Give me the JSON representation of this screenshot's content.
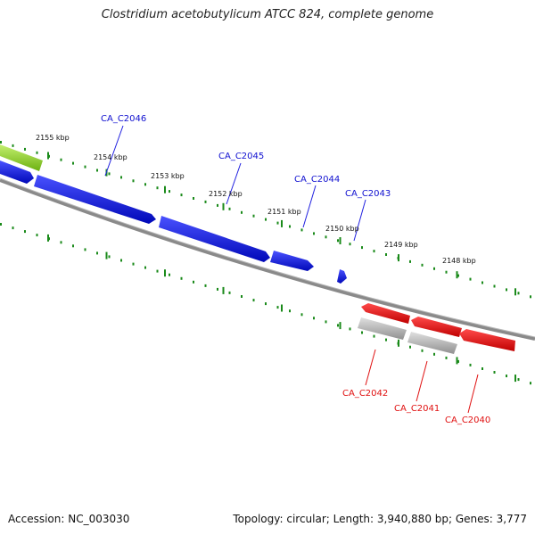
{
  "title": "Clostridium acetobutylicum ATCC 824, complete genome",
  "footer": {
    "accession": "Accession: NC_003030",
    "summary": "Topology: circular; Length: 3,940,880 bp; Genes: 3,777"
  },
  "colors": {
    "forward_gene": "#0a12e6",
    "reverse_gene": "#f00a0a",
    "rna_gene": "#b0b0b0",
    "misc_feature": "#8fdc2a",
    "scale_ticks": "#1a8a1a",
    "backbone": "#808080"
  },
  "scale_labels": [
    "2155 kbp",
    "2154 kbp",
    "2153 kbp",
    "2152 kbp",
    "2151 kbp",
    "2150 kbp",
    "2149 kbp",
    "2148 kbp"
  ],
  "forward_labels": [
    "CA_C2046",
    "CA_C2045",
    "CA_C2044",
    "CA_C2043"
  ],
  "reverse_labels": [
    "CA_C2042",
    "CA_C2041",
    "CA_C2040"
  ]
}
